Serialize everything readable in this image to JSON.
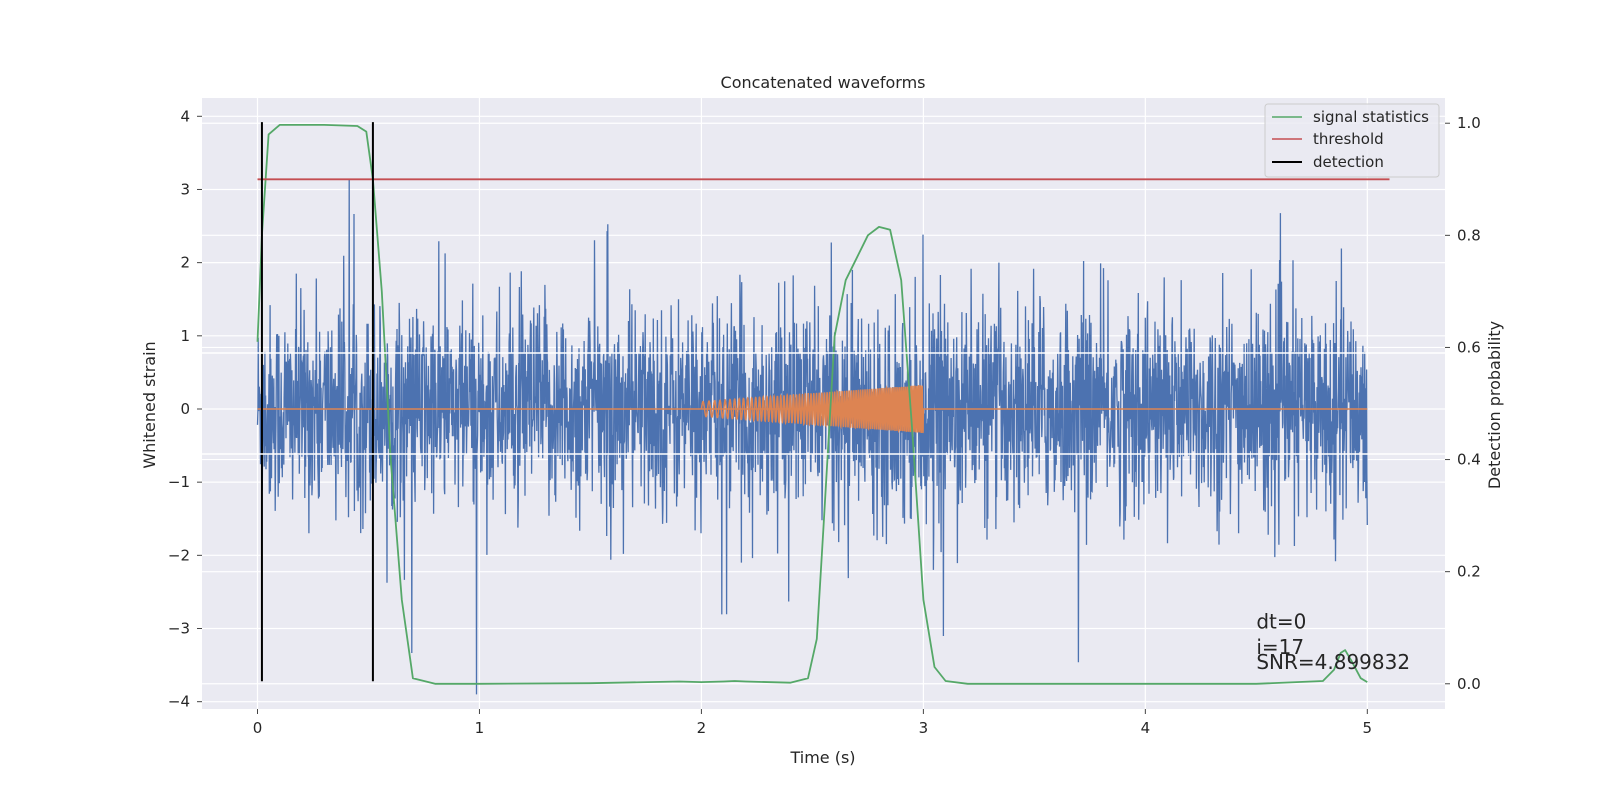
{
  "chart_data": {
    "type": "line",
    "title": "Concatenated waveforms",
    "xlabel": "Time (s)",
    "ylabel": "Whitened strain",
    "y2label": "Detection probability",
    "xlim": [
      -0.25,
      5.35
    ],
    "ylim": [
      -4.1,
      4.25
    ],
    "y2lim": [
      -0.045,
      1.045
    ],
    "xticks": [
      0,
      1,
      2,
      3,
      4,
      5
    ],
    "yticks": [
      -4,
      -3,
      -2,
      -1,
      0,
      1,
      2,
      3,
      4
    ],
    "y2ticks": [
      0.0,
      0.2,
      0.4,
      0.6,
      0.8,
      1.0
    ],
    "xtick_labels": [
      "0",
      "1",
      "2",
      "3",
      "4",
      "5"
    ],
    "ytick_labels": [
      "−4",
      "−3",
      "−2",
      "−1",
      "0",
      "1",
      "2",
      "3",
      "4"
    ],
    "y2tick_labels": [
      "0.0",
      "0.2",
      "0.4",
      "0.6",
      "0.8",
      "1.0"
    ],
    "grid": true,
    "legend_position": "top-right",
    "series": [
      {
        "name": "",
        "axis": "left",
        "color": "#4c72b0",
        "kind": "noise",
        "x_range": [
          0,
          5
        ],
        "typical_amplitude": 0.7,
        "peak_amplitude": 3.9
      },
      {
        "name": "",
        "axis": "left",
        "color": "#dd8452",
        "kind": "chirp",
        "x_range": [
          2.0,
          3.0
        ],
        "amplitude_start": 0.1,
        "amplitude_end": 0.33
      },
      {
        "name": "signal statistics",
        "axis": "right",
        "color": "#55a868",
        "x": [
          0.0,
          0.02,
          0.05,
          0.1,
          0.2,
          0.3,
          0.45,
          0.49,
          0.52,
          0.56,
          0.6,
          0.65,
          0.7,
          0.8,
          1.0,
          1.5,
          1.9,
          2.0,
          2.1,
          2.15,
          2.2,
          2.4,
          2.48,
          2.52,
          2.55,
          2.6,
          2.65,
          2.7,
          2.75,
          2.8,
          2.85,
          2.9,
          2.95,
          3.0,
          3.05,
          3.1,
          3.2,
          3.5,
          4.0,
          4.5,
          4.8,
          4.85,
          4.88,
          4.9,
          4.93,
          4.97,
          5.0
        ],
        "y": [
          0.61,
          0.8,
          0.98,
          0.997,
          0.997,
          0.997,
          0.995,
          0.985,
          0.9,
          0.7,
          0.4,
          0.15,
          0.01,
          0.0,
          0.0,
          0.001,
          0.004,
          0.003,
          0.004,
          0.005,
          0.004,
          0.002,
          0.01,
          0.08,
          0.28,
          0.62,
          0.72,
          0.76,
          0.8,
          0.815,
          0.81,
          0.72,
          0.45,
          0.15,
          0.03,
          0.005,
          0.0,
          0.0,
          0.0,
          0.0,
          0.005,
          0.025,
          0.055,
          0.06,
          0.04,
          0.01,
          0.003
        ]
      },
      {
        "name": "threshold",
        "axis": "right",
        "color": "#c44e52",
        "x": [
          0.0,
          5.1
        ],
        "y": [
          0.9,
          0.9
        ]
      },
      {
        "name": "detection",
        "axis": "left",
        "color": "#000000",
        "kind": "vlines",
        "x": [
          0.02,
          0.52
        ],
        "y_range": [
          -3.72,
          3.92
        ]
      }
    ],
    "hlines": [
      {
        "y2": 0.41,
        "color": "#ffffff"
      },
      {
        "y2": 0.59,
        "color": "#ffffff"
      }
    ],
    "annotations": [
      {
        "text": "dt=0",
        "x": 4.5,
        "y": -3.0
      },
      {
        "text": "i=17",
        "x": 4.5,
        "y": -3.35
      },
      {
        "text": "SNR=4.899832",
        "x": 4.5,
        "y": -3.55
      }
    ]
  }
}
